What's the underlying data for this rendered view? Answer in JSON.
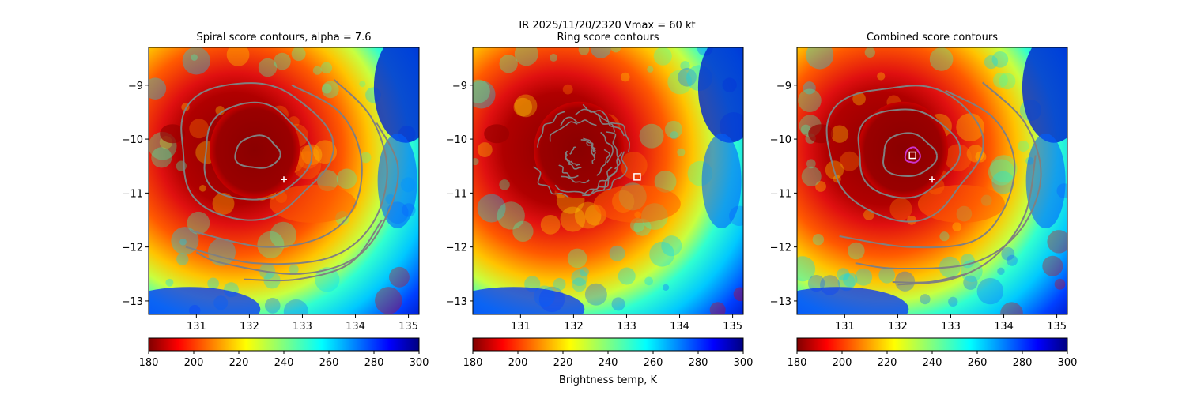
{
  "suptitle": "IR  2025/11/20/2320    Vmax = 60 kt",
  "colorbar_label": "Brightness temp, K",
  "chart_data": [
    {
      "type": "heatmap",
      "title": "Spiral score contours, alpha =  7.6",
      "xlim": [
        130.1,
        135.2
      ],
      "ylim": [
        -13.25,
        -8.3
      ],
      "xticks": [
        "131",
        "132",
        "133",
        "134",
        "135"
      ],
      "yticks": [
        "−9",
        "−10",
        "−11",
        "−12",
        "−13"
      ],
      "center": [
        132.1,
        -10.2
      ],
      "eye_radius_deg": 0.85,
      "contours": [
        {
          "shape": "ring",
          "cx": 132.15,
          "cy": -10.25,
          "rx": 0.42,
          "ry": 0.3
        },
        {
          "shape": "ring",
          "cx": 132.1,
          "cy": -10.25,
          "rx": 1.0,
          "ry": 0.9
        },
        {
          "shape": "ring",
          "cx": 132.05,
          "cy": -10.2,
          "rx": 1.42,
          "ry": 1.27
        },
        {
          "shape": "arc",
          "points": [
            [
              132.8,
              -9.0
            ],
            [
              133.7,
              -9.5
            ],
            [
              134.1,
              -10.3
            ],
            [
              134.0,
              -11.2
            ],
            [
              133.4,
              -11.8
            ],
            [
              132.3,
              -12.0
            ],
            [
              130.9,
              -11.7
            ]
          ]
        },
        {
          "shape": "arc",
          "points": [
            [
              133.6,
              -8.9
            ],
            [
              134.3,
              -9.6
            ],
            [
              134.6,
              -10.6
            ],
            [
              134.3,
              -11.6
            ],
            [
              133.5,
              -12.2
            ],
            [
              132.1,
              -12.3
            ],
            [
              130.8,
              -12.0
            ]
          ]
        },
        {
          "shape": "arc",
          "points": [
            [
              134.4,
              -9.7
            ],
            [
              134.8,
              -10.5
            ],
            [
              134.6,
              -11.4
            ],
            [
              134.0,
              -12.2
            ],
            [
              132.9,
              -12.5
            ],
            [
              131.5,
              -12.3
            ],
            [
              131.0,
              -12.1
            ]
          ]
        },
        {
          "shape": "arc",
          "points": [
            [
              134.5,
              -11.5
            ],
            [
              133.9,
              -12.3
            ],
            [
              132.9,
              -12.6
            ],
            [
              131.9,
              -12.6
            ]
          ]
        }
      ],
      "marker": {
        "symbol": "plus",
        "x": 132.65,
        "y": -10.75
      }
    },
    {
      "type": "heatmap",
      "title": "Ring score contours",
      "xlim": [
        130.1,
        135.2
      ],
      "ylim": [
        -13.25,
        -8.3
      ],
      "xticks": [
        "131",
        "132",
        "133",
        "134",
        "135"
      ],
      "yticks": [
        "−9",
        "−10",
        "−11",
        "−12",
        "−13"
      ],
      "center": [
        132.1,
        -10.2
      ],
      "eye_radius_deg": 0.85,
      "contours": [
        {
          "shape": "noisy-ring",
          "cx": 132.1,
          "cy": -10.3,
          "rx": 0.95,
          "ry": 0.92
        }
      ],
      "marker": {
        "symbol": "square",
        "x": 133.2,
        "y": -10.7
      }
    },
    {
      "type": "heatmap",
      "title": "Combined score contours",
      "xlim": [
        130.1,
        135.2
      ],
      "ylim": [
        -13.25,
        -8.3
      ],
      "xticks": [
        "131",
        "132",
        "133",
        "134",
        "135"
      ],
      "yticks": [
        "−9",
        "−10",
        "−11",
        "−12",
        "−13"
      ],
      "center": [
        132.1,
        -10.2
      ],
      "eye_radius_deg": 0.85,
      "contours": [
        {
          "shape": "ring",
          "cx": 132.28,
          "cy": -10.3,
          "rx": 0.14,
          "ry": 0.14,
          "color": "#cc33cc"
        },
        {
          "shape": "ring",
          "cx": 132.2,
          "cy": -10.3,
          "rx": 0.5,
          "ry": 0.4
        },
        {
          "shape": "ring",
          "cx": 132.15,
          "cy": -10.25,
          "rx": 0.95,
          "ry": 0.82
        },
        {
          "shape": "ring",
          "cx": 132.1,
          "cy": -10.2,
          "rx": 1.45,
          "ry": 1.25
        },
        {
          "shape": "arc",
          "points": [
            [
              132.9,
              -9.1
            ],
            [
              133.8,
              -9.6
            ],
            [
              134.2,
              -10.4
            ],
            [
              134.0,
              -11.3
            ],
            [
              133.4,
              -11.9
            ],
            [
              132.2,
              -12.0
            ],
            [
              130.9,
              -11.8
            ]
          ]
        },
        {
          "shape": "arc",
          "points": [
            [
              133.6,
              -8.95
            ],
            [
              134.4,
              -9.7
            ],
            [
              134.7,
              -10.7
            ],
            [
              134.3,
              -11.7
            ],
            [
              133.4,
              -12.3
            ],
            [
              132.0,
              -12.4
            ],
            [
              131.2,
              -12.3
            ]
          ]
        },
        {
          "shape": "arc",
          "points": [
            [
              134.6,
              -10.3
            ],
            [
              134.4,
              -11.4
            ],
            [
              133.8,
              -12.2
            ],
            [
              133.0,
              -12.6
            ],
            [
              132.0,
              -12.7
            ]
          ]
        },
        {
          "shape": "arc",
          "points": [
            [
              133.3,
              -12.5
            ],
            [
              132.6,
              -12.65
            ],
            [
              131.9,
              -12.65
            ]
          ]
        }
      ],
      "marker": {
        "symbol": "plus",
        "x": 132.65,
        "y": -10.75
      },
      "square_marker": {
        "symbol": "square",
        "x": 132.28,
        "y": -10.3
      }
    }
  ],
  "colorbars": [
    {
      "vmin": 180,
      "vmax": 300,
      "ticks": [
        "180",
        "200",
        "220",
        "240",
        "260",
        "280",
        "300"
      ],
      "colormap": "jet_r"
    },
    {
      "vmin": 180,
      "vmax": 300,
      "ticks": [
        "180",
        "200",
        "220",
        "240",
        "260",
        "280",
        "300"
      ],
      "colormap": "jet_r"
    },
    {
      "vmin": 180,
      "vmax": 300,
      "ticks": [
        "180",
        "200",
        "220",
        "240",
        "260",
        "280",
        "300"
      ],
      "colormap": "jet_r"
    }
  ],
  "colors": {
    "contour": "#808080",
    "marker": "#ffffff",
    "combined_center_contour": "#cc33cc"
  }
}
